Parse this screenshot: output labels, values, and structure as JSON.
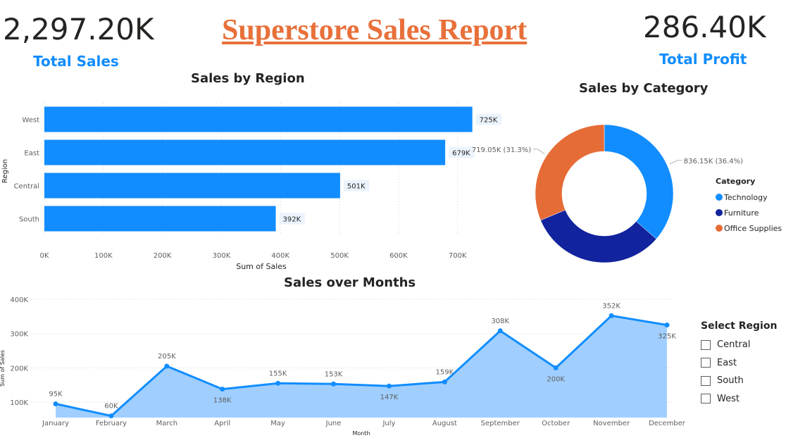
{
  "report": {
    "title": "Superstore Sales Report",
    "title_color": "#E8703A",
    "accent_color": "#118DFF"
  },
  "kpis": {
    "total_sales": {
      "value": "2,297.20K",
      "label": "Total Sales"
    },
    "total_profit": {
      "value": "286.40K",
      "label": "Total Profit"
    }
  },
  "chart_data": [
    {
      "type": "bar",
      "orientation": "horizontal",
      "title": "Sales by Region",
      "xlabel": "Sum of Sales",
      "ylabel": "Region",
      "categories": [
        "West",
        "East",
        "Central",
        "South"
      ],
      "values": [
        725,
        679,
        501,
        392
      ],
      "data_labels": [
        "725K",
        "679K",
        "501K",
        "392K"
      ],
      "xlim": [
        0,
        760
      ],
      "x_ticks": [
        0,
        100,
        200,
        300,
        400,
        500,
        600,
        700
      ],
      "x_tick_labels": [
        "0K",
        "100K",
        "200K",
        "300K",
        "400K",
        "500K",
        "600K",
        "700K"
      ],
      "color": "#118DFF",
      "grid": true
    },
    {
      "type": "pie",
      "subtype": "donut",
      "title": "Sales by Category",
      "legend_title": "Category",
      "legend_position": "right",
      "slices": [
        {
          "name": "Technology",
          "value": 836.15,
          "label": "836.15K (36.4%)",
          "color": "#118DFF"
        },
        {
          "name": "Furniture",
          "value": 742.0,
          "label": "",
          "color": "#12239E"
        },
        {
          "name": "Office Supplies",
          "value": 719.05,
          "label": "719.05K (31.3%)",
          "color": "#E66C37"
        }
      ]
    },
    {
      "type": "area",
      "title": "Sales over Months",
      "xlabel": "Month",
      "ylabel": "Sum of Sales",
      "categories": [
        "January",
        "February",
        "March",
        "April",
        "May",
        "June",
        "July",
        "August",
        "September",
        "October",
        "November",
        "December"
      ],
      "values": [
        95,
        60,
        205,
        138,
        155,
        153,
        147,
        159,
        308,
        200,
        352,
        325
      ],
      "data_labels": [
        "95K",
        "60K",
        "205K",
        "138K",
        "155K",
        "153K",
        "147K",
        "159K",
        "308K",
        "200K",
        "352K",
        "325K"
      ],
      "ylim": [
        55,
        400
      ],
      "y_ticks": [
        100,
        200,
        300,
        400
      ],
      "y_tick_labels": [
        "100K",
        "200K",
        "300K",
        "400K"
      ],
      "line_color": "#118DFF",
      "fill_color": "#A0CFFF",
      "grid": true
    }
  ],
  "slicer": {
    "title": "Select Region",
    "options": [
      "Central",
      "East",
      "South",
      "West"
    ]
  }
}
